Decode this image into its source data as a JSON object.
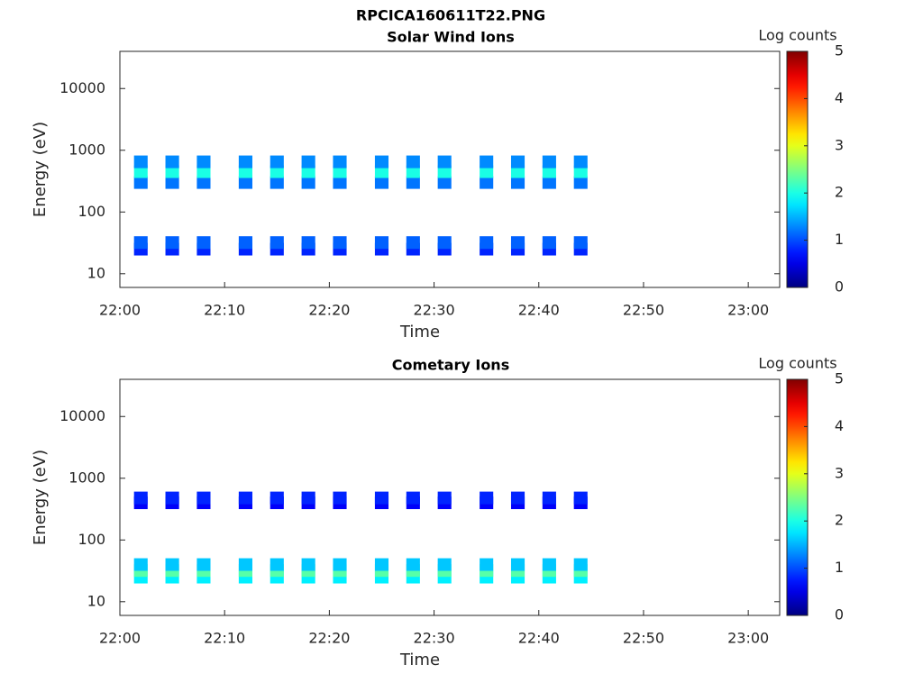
{
  "title": "RPCICA160611T22.PNG",
  "chart_data": [
    {
      "type": "heatmap",
      "title": "Solar Wind Ions",
      "xlabel": "Time",
      "ylabel": "Energy (eV)",
      "log_y": true,
      "xlim": [
        "22:00",
        "23:03"
      ],
      "xticks": [
        "22:00",
        "22:10",
        "22:20",
        "22:30",
        "22:40",
        "22:50",
        "23:00"
      ],
      "ylim": [
        6,
        40000
      ],
      "yticks": [
        10,
        100,
        1000,
        10000
      ],
      "colorbar": {
        "label": "Log counts",
        "lim": [
          0,
          5
        ],
        "ticks": [
          0,
          1,
          2,
          3,
          4,
          5
        ],
        "colormap": "jet"
      },
      "x": [
        "22:02",
        "22:02",
        "22:02",
        "22:02",
        "22:02",
        "22:05",
        "22:05",
        "22:05",
        "22:05",
        "22:05",
        "22:08",
        "22:08",
        "22:08",
        "22:08",
        "22:08",
        "22:12",
        "22:12",
        "22:12",
        "22:12",
        "22:12",
        "22:15",
        "22:15",
        "22:15",
        "22:15",
        "22:15",
        "22:18",
        "22:18",
        "22:18",
        "22:18",
        "22:18",
        "22:21",
        "22:21",
        "22:21",
        "22:21",
        "22:21",
        "22:25",
        "22:25",
        "22:25",
        "22:25",
        "22:25",
        "22:28",
        "22:28",
        "22:28",
        "22:28",
        "22:28",
        "22:31",
        "22:31",
        "22:31",
        "22:31",
        "22:31",
        "22:35",
        "22:35",
        "22:35",
        "22:35",
        "22:35",
        "22:38",
        "22:38",
        "22:38",
        "22:38",
        "22:38",
        "22:41",
        "22:41",
        "22:41",
        "22:41",
        "22:41",
        "22:44",
        "22:44",
        "22:44",
        "22:44",
        "22:44"
      ],
      "y": [
        300,
        450,
        650,
        25,
        32,
        300,
        450,
        650,
        25,
        32,
        300,
        450,
        650,
        25,
        32,
        300,
        450,
        650,
        25,
        32,
        300,
        450,
        650,
        25,
        32,
        300,
        450,
        650,
        25,
        32,
        300,
        450,
        650,
        25,
        32,
        300,
        450,
        650,
        25,
        32,
        300,
        450,
        650,
        25,
        32,
        300,
        450,
        650,
        25,
        32,
        300,
        450,
        650,
        25,
        32,
        300,
        450,
        650,
        25,
        32,
        300,
        450,
        650,
        25,
        32,
        300,
        450,
        650,
        25,
        32
      ],
      "values": [
        1.2,
        2,
        1.3,
        0.8,
        1.1,
        1.2,
        2,
        1.3,
        0.8,
        1.1,
        1.2,
        2,
        1.3,
        0.8,
        1.1,
        1.2,
        2,
        1.3,
        0.8,
        1.1,
        1.2,
        2,
        1.3,
        0.8,
        1.1,
        1.2,
        2,
        1.3,
        0.8,
        1.1,
        1.2,
        2,
        1.3,
        0.8,
        1.1,
        1.2,
        2,
        1.3,
        0.8,
        1.1,
        1.2,
        2,
        1.3,
        0.8,
        1.1,
        1.2,
        2,
        1.3,
        0.8,
        1.1,
        1.2,
        2,
        1.3,
        0.8,
        1.1,
        1.2,
        2,
        1.3,
        0.8,
        1.1,
        1.2,
        2,
        1.3,
        0.8,
        1.1,
        1.2,
        2,
        1.3,
        0.8,
        1.1
      ]
    },
    {
      "type": "heatmap",
      "title": "Cometary Ions",
      "xlabel": "Time",
      "ylabel": "Energy (eV)",
      "log_y": true,
      "xlim": [
        "22:00",
        "23:03"
      ],
      "xticks": [
        "22:00",
        "22:10",
        "22:20",
        "22:30",
        "22:40",
        "22:50",
        "23:00"
      ],
      "ylim": [
        6,
        40000
      ],
      "yticks": [
        10,
        100,
        1000,
        10000
      ],
      "colorbar": {
        "label": "Log counts",
        "lim": [
          0,
          5
        ],
        "ticks": [
          0,
          1,
          2,
          3,
          4,
          5
        ],
        "colormap": "jet"
      },
      "x": [
        "22:02",
        "22:02",
        "22:02",
        "22:02",
        "22:02",
        "22:05",
        "22:05",
        "22:05",
        "22:05",
        "22:05",
        "22:08",
        "22:08",
        "22:08",
        "22:08",
        "22:08",
        "22:12",
        "22:12",
        "22:12",
        "22:12",
        "22:12",
        "22:15",
        "22:15",
        "22:15",
        "22:15",
        "22:15",
        "22:18",
        "22:18",
        "22:18",
        "22:18",
        "22:18",
        "22:21",
        "22:21",
        "22:21",
        "22:21",
        "22:21",
        "22:25",
        "22:25",
        "22:25",
        "22:25",
        "22:25",
        "22:28",
        "22:28",
        "22:28",
        "22:28",
        "22:28",
        "22:31",
        "22:31",
        "22:31",
        "22:31",
        "22:31",
        "22:35",
        "22:35",
        "22:35",
        "22:35",
        "22:35",
        "22:38",
        "22:38",
        "22:38",
        "22:38",
        "22:38",
        "22:41",
        "22:41",
        "22:41",
        "22:41",
        "22:41",
        "22:44",
        "22:44",
        "22:44",
        "22:44",
        "22:44"
      ],
      "y": [
        400,
        480,
        25,
        32,
        40,
        400,
        480,
        25,
        32,
        40,
        400,
        480,
        25,
        32,
        40,
        400,
        480,
        25,
        32,
        40,
        400,
        480,
        25,
        32,
        40,
        400,
        480,
        25,
        32,
        40,
        400,
        480,
        25,
        32,
        40,
        400,
        480,
        25,
        32,
        40,
        400,
        480,
        25,
        32,
        40,
        400,
        480,
        25,
        32,
        40,
        400,
        480,
        25,
        32,
        40,
        400,
        480,
        25,
        32,
        40,
        400,
        480,
        25,
        32,
        40,
        400,
        480,
        25,
        32,
        40
      ],
      "values": [
        0.6,
        0.8,
        1.8,
        2.3,
        1.6,
        0.6,
        0.8,
        1.8,
        2.3,
        1.6,
        0.6,
        0.8,
        1.8,
        2.3,
        1.6,
        0.6,
        0.8,
        1.8,
        2.3,
        1.6,
        0.6,
        0.8,
        1.8,
        2.3,
        1.6,
        0.6,
        0.8,
        1.8,
        2.3,
        1.6,
        0.6,
        0.8,
        1.8,
        2.3,
        1.6,
        0.6,
        0.8,
        1.8,
        2.3,
        1.6,
        0.6,
        0.8,
        1.8,
        2.3,
        1.6,
        0.6,
        0.8,
        1.8,
        2.3,
        1.6,
        0.6,
        0.8,
        1.8,
        2.3,
        1.6,
        0.6,
        0.8,
        1.8,
        2.3,
        1.6,
        0.6,
        0.8,
        1.8,
        2.3,
        1.6,
        0.6,
        0.8,
        1.8,
        2.3,
        1.6
      ]
    }
  ]
}
